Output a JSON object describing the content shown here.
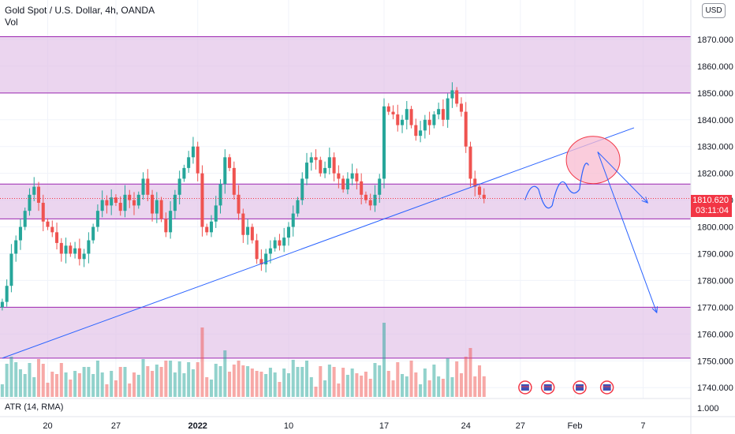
{
  "header": {
    "symbol_line": "Gold Spot / U.S. Dollar, 4h, OANDA",
    "volume_label": "Vol"
  },
  "indicator": {
    "label": "ATR (14, RMA)",
    "axis_value": "1.000"
  },
  "currency_button": "USD",
  "last_price": {
    "value": "1810.620",
    "countdown": "03:11:04"
  },
  "colors": {
    "up": "#26a69a",
    "down": "#ef5350",
    "zone_fill": "#e1bee7",
    "zone_line": "#9c27b0",
    "drawing": "#2962ff",
    "price_tag": "#f23645"
  },
  "chart_data": {
    "type": "candlestick",
    "title": "Gold Spot / U.S. Dollar, 4h, OANDA",
    "ylim": [
      1738,
      1880
    ],
    "y_ticks": [
      1740,
      1750,
      1760,
      1770,
      1780,
      1790,
      1800,
      1810,
      1820,
      1830,
      1840,
      1850,
      1860,
      1870
    ],
    "y_tick_labels": [
      "1740.000",
      "1750.000",
      "1760.000",
      "1770.000",
      "1780.000",
      "1790.000",
      "1800.000",
      "1810.000",
      "1820.000",
      "1830.000",
      "1840.000",
      "1850.000",
      "1860.000",
      "1870.000"
    ],
    "x_ticks": [
      {
        "label": "20",
        "idx": 10
      },
      {
        "label": "27",
        "idx": 25
      },
      {
        "label": "2022",
        "idx": 43
      },
      {
        "label": "10",
        "idx": 63
      },
      {
        "label": "17",
        "idx": 84
      },
      {
        "label": "24",
        "idx": 102
      },
      {
        "label": "27",
        "idx": 114
      },
      {
        "label": "Feb",
        "idx": 126
      },
      {
        "label": "7",
        "idx": 141
      }
    ],
    "total_slots": 152,
    "zones": [
      {
        "from": 1850,
        "to": 1871
      },
      {
        "from": 1803,
        "to": 1816
      },
      {
        "from": 1751,
        "to": 1770
      }
    ],
    "trendline": {
      "from": {
        "idx": 0,
        "price": 1751
      },
      "to": {
        "idx": 139,
        "price": 1837
      }
    },
    "projection_path": [
      {
        "idx": 115,
        "price": 1810
      },
      {
        "idx": 118,
        "price": 1814
      },
      {
        "idx": 121,
        "price": 1808
      },
      {
        "idx": 124,
        "price": 1816
      },
      {
        "idx": 127,
        "price": 1814
      },
      {
        "idx": 129,
        "price": 1823
      }
    ],
    "projection_arrows": [
      {
        "from": {
          "idx": 131,
          "price": 1828
        },
        "to": {
          "idx": 142,
          "price": 1809
        }
      },
      {
        "from": {
          "idx": 131,
          "price": 1828
        },
        "to": {
          "idx": 144,
          "price": 1768
        }
      }
    ],
    "highlight_circle": {
      "idx": 130,
      "price": 1825
    },
    "closes": [
      1772,
      1778,
      1790,
      1795,
      1800,
      1806,
      1812,
      1815,
      1809,
      1802,
      1800,
      1798,
      1794,
      1790,
      1793,
      1790,
      1792,
      1788,
      1790,
      1795,
      1800,
      1806,
      1810,
      1808,
      1811,
      1809,
      1806,
      1812,
      1810,
      1808,
      1812,
      1818,
      1812,
      1805,
      1810,
      1803,
      1798,
      1806,
      1812,
      1818,
      1822,
      1826,
      1830,
      1820,
      1800,
      1798,
      1802,
      1808,
      1816,
      1826,
      1822,
      1812,
      1805,
      1797,
      1800,
      1795,
      1788,
      1786,
      1790,
      1792,
      1795,
      1793,
      1796,
      1800,
      1805,
      1810,
      1818,
      1824,
      1826,
      1825,
      1820,
      1822,
      1826,
      1820,
      1818,
      1814,
      1818,
      1820,
      1817,
      1812,
      1810,
      1808,
      1812,
      1818,
      1845,
      1843,
      1842,
      1838,
      1840,
      1844,
      1838,
      1834,
      1836,
      1840,
      1838,
      1842,
      1844,
      1840,
      1848,
      1851,
      1846,
      1843,
      1830,
      1818,
      1815,
      1812,
      1810.62
    ]
  }
}
